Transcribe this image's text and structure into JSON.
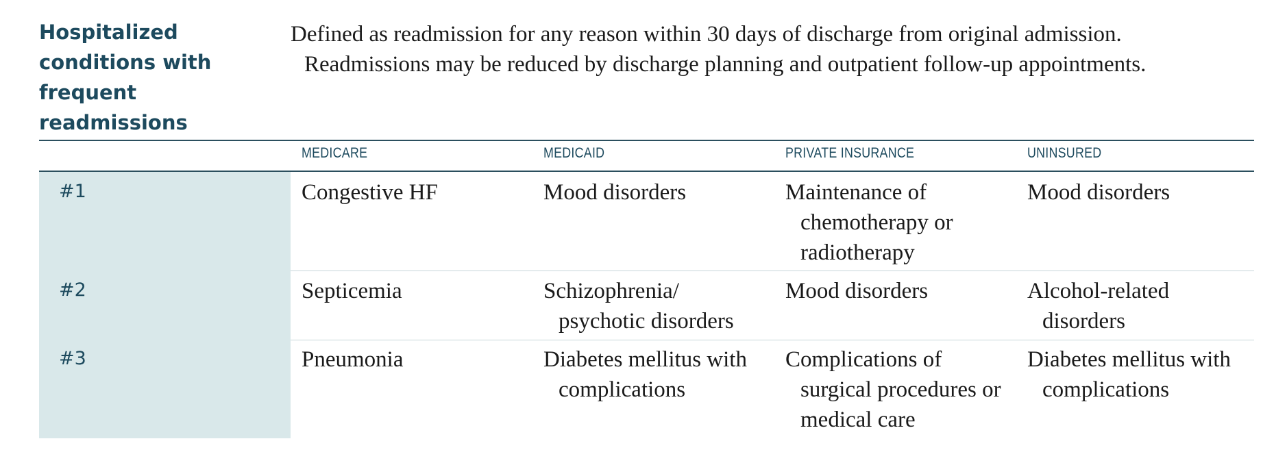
{
  "title": "Hospitalized conditions with frequent readmissions",
  "intro": {
    "line1": "Defined as readmission for any reason within 30 days of discharge from original admission.",
    "line2": "Readmissions may be reduced by discharge planning and outpatient follow-up appointments."
  },
  "columns": [
    "MEDICARE",
    "MEDICAID",
    "PRIVATE INSURANCE",
    "UNINSURED"
  ],
  "rows": [
    {
      "rank": "#1",
      "cells": [
        "Congestive HF",
        "Mood disorders",
        "Maintenance of chemotherapy or radiotherapy",
        "Mood disorders"
      ]
    },
    {
      "rank": "#2",
      "cells": [
        "Septicemia",
        "Schizophrenia/ psychotic disorders",
        "Mood disorders",
        "Alcohol-related disorders"
      ]
    },
    {
      "rank": "#3",
      "cells": [
        "Pneumonia",
        "Diabetes mellitus with complications",
        "Complications of surgical procedures or medical care",
        "Diabetes mellitus with complications"
      ]
    }
  ]
}
